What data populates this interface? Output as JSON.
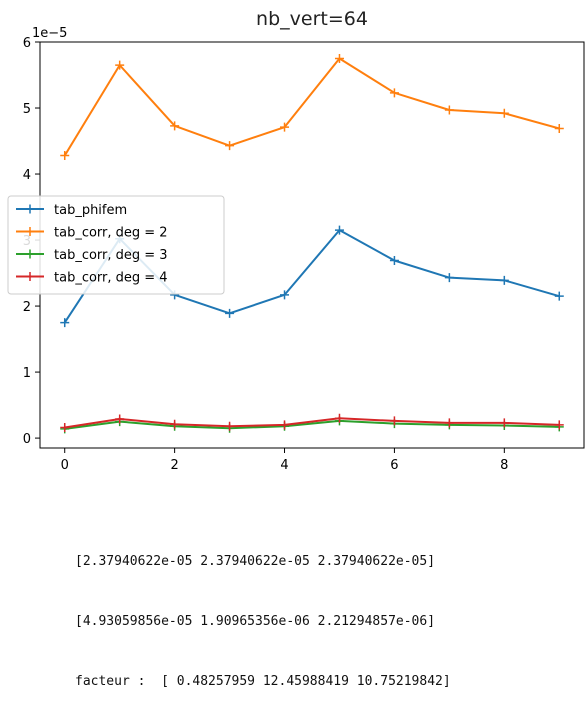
{
  "chart_data": {
    "type": "line",
    "title": "nb_vert=64",
    "xlabel": "",
    "ylabel": "",
    "y_offset_text": "1e−5",
    "x": [
      0,
      1,
      2,
      3,
      4,
      5,
      6,
      7,
      8,
      9
    ],
    "xlim": [
      -0.45,
      9.45
    ],
    "ylim": [
      -0.15,
      6.0
    ],
    "y_scale_note": "values in units of 1e-5",
    "xticks": [
      0,
      2,
      4,
      6,
      8
    ],
    "yticks": [
      0,
      1,
      2,
      3,
      4,
      5,
      6
    ],
    "grid": false,
    "legend_position": "center-left",
    "marker": "+",
    "series": [
      {
        "name": "tab_phifem",
        "color": "#1f77b4",
        "values": [
          1.75,
          3.02,
          2.17,
          1.89,
          2.17,
          3.15,
          2.69,
          2.43,
          2.39,
          2.15
        ]
      },
      {
        "name": "tab_corr, deg = 2",
        "color": "#ff7f0e",
        "values": [
          4.28,
          5.65,
          4.73,
          4.43,
          4.71,
          5.75,
          5.23,
          4.97,
          4.92,
          4.69
        ]
      },
      {
        "name": "tab_corr, deg = 3",
        "color": "#2ca02c",
        "values": [
          0.14,
          0.25,
          0.18,
          0.15,
          0.18,
          0.26,
          0.22,
          0.2,
          0.19,
          0.17
        ]
      },
      {
        "name": "tab_corr, deg = 4",
        "color": "#d62728",
        "values": [
          0.16,
          0.29,
          0.21,
          0.18,
          0.2,
          0.3,
          0.26,
          0.23,
          0.23,
          0.2
        ]
      }
    ]
  },
  "output_lines": [
    "[2.37940622e-05 2.37940622e-05 2.37940622e-05]",
    "[4.93059856e-05 1.90965356e-06 2.21294857e-06]",
    "facteur :  [ 0.48257959 12.45988419 10.75219842]"
  ]
}
